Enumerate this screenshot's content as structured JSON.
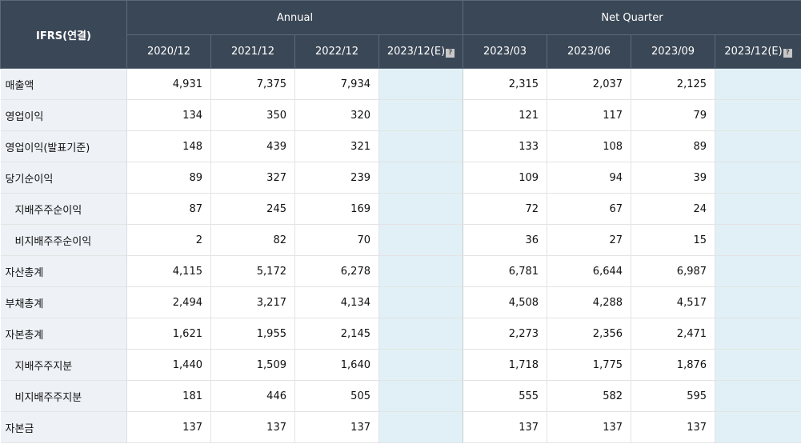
{
  "header": {
    "ifrs_label": "IFRS(연결)",
    "annual_label": "Annual",
    "quarter_label": "Net Quarter",
    "hint_glyph": "?",
    "annual_cols": [
      "2020/12",
      "2021/12",
      "2022/12",
      "2023/12(E)"
    ],
    "quarter_cols": [
      "2023/03",
      "2023/06",
      "2023/09",
      "2023/12(E)"
    ]
  },
  "rows": [
    {
      "label": "매출액",
      "values": [
        "4,931",
        "7,375",
        "7,934",
        "",
        "2,315",
        "2,037",
        "2,125",
        ""
      ]
    },
    {
      "label": "영업이익",
      "values": [
        "134",
        "350",
        "320",
        "",
        "121",
        "117",
        "79",
        ""
      ]
    },
    {
      "label": "영업이익(발표기준)",
      "values": [
        "148",
        "439",
        "321",
        "",
        "133",
        "108",
        "89",
        ""
      ]
    },
    {
      "label": "당기순이익",
      "values": [
        "89",
        "327",
        "239",
        "",
        "109",
        "94",
        "39",
        ""
      ]
    },
    {
      "label": "지배주주순이익",
      "values": [
        "87",
        "245",
        "169",
        "",
        "72",
        "67",
        "24",
        ""
      ]
    },
    {
      "label": "비지배주주순이익",
      "values": [
        "2",
        "82",
        "70",
        "",
        "36",
        "27",
        "15",
        ""
      ]
    },
    {
      "label": "자산총계",
      "values": [
        "4,115",
        "5,172",
        "6,278",
        "",
        "6,781",
        "6,644",
        "6,987",
        ""
      ]
    },
    {
      "label": "부채총계",
      "values": [
        "2,494",
        "3,217",
        "4,134",
        "",
        "4,508",
        "4,288",
        "4,517",
        ""
      ]
    },
    {
      "label": "자본총계",
      "values": [
        "1,621",
        "1,955",
        "2,145",
        "",
        "2,273",
        "2,356",
        "2,471",
        ""
      ]
    },
    {
      "label": "지배주주지분",
      "values": [
        "1,440",
        "1,509",
        "1,640",
        "",
        "1,718",
        "1,775",
        "1,876",
        ""
      ]
    },
    {
      "label": "비지배주주지분",
      "values": [
        "181",
        "446",
        "505",
        "",
        "555",
        "582",
        "595",
        ""
      ]
    },
    {
      "label": "자본금",
      "values": [
        "137",
        "137",
        "137",
        "",
        "137",
        "137",
        "137",
        ""
      ]
    }
  ]
}
